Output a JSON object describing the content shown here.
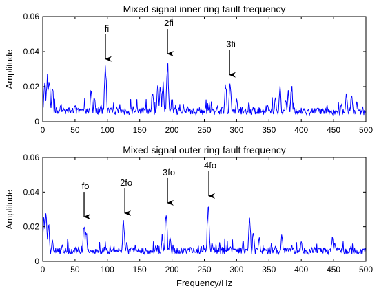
{
  "chart_data": [
    {
      "type": "line",
      "title": "Mixed signal inner ring fault frequency",
      "xlabel": "",
      "ylabel": "Amplitude",
      "xlim": [
        0,
        500
      ],
      "ylim": [
        0,
        0.06
      ],
      "xticks": [
        0,
        50,
        100,
        150,
        200,
        250,
        300,
        350,
        400,
        450,
        500
      ],
      "yticks": [
        0,
        0.02,
        0.04,
        0.06
      ],
      "xtick_labels": [
        "0",
        "50",
        "100",
        "150",
        "200",
        "250",
        "300",
        "350",
        "400",
        "450",
        "500"
      ],
      "ytick_labels": [
        "0",
        "0.02",
        "0.04",
        "0.06"
      ],
      "grid": false,
      "color": "#0000ff",
      "peaks": [
        {
          "x": 3,
          "y": 0.026
        },
        {
          "x": 7,
          "y": 0.028
        },
        {
          "x": 10,
          "y": 0.027
        },
        {
          "x": 15,
          "y": 0.022
        },
        {
          "x": 28,
          "y": 0.012
        },
        {
          "x": 50,
          "y": 0.011
        },
        {
          "x": 75,
          "y": 0.02
        },
        {
          "x": 80,
          "y": 0.016
        },
        {
          "x": 90,
          "y": 0.012
        },
        {
          "x": 97,
          "y": 0.035
        },
        {
          "x": 115,
          "y": 0.009
        },
        {
          "x": 140,
          "y": 0.009
        },
        {
          "x": 170,
          "y": 0.02
        },
        {
          "x": 178,
          "y": 0.025
        },
        {
          "x": 182,
          "y": 0.022
        },
        {
          "x": 186,
          "y": 0.024
        },
        {
          "x": 193,
          "y": 0.038
        },
        {
          "x": 200,
          "y": 0.015
        },
        {
          "x": 220,
          "y": 0.008
        },
        {
          "x": 245,
          "y": 0.007
        },
        {
          "x": 270,
          "y": 0.01
        },
        {
          "x": 283,
          "y": 0.024
        },
        {
          "x": 290,
          "y": 0.026
        },
        {
          "x": 300,
          "y": 0.014
        },
        {
          "x": 325,
          "y": 0.009
        },
        {
          "x": 348,
          "y": 0.012
        },
        {
          "x": 360,
          "y": 0.015
        },
        {
          "x": 367,
          "y": 0.022
        },
        {
          "x": 376,
          "y": 0.014
        },
        {
          "x": 380,
          "y": 0.018
        },
        {
          "x": 385,
          "y": 0.022
        },
        {
          "x": 410,
          "y": 0.008
        },
        {
          "x": 440,
          "y": 0.01
        },
        {
          "x": 462,
          "y": 0.012
        },
        {
          "x": 470,
          "y": 0.017
        },
        {
          "x": 478,
          "y": 0.018
        },
        {
          "x": 486,
          "y": 0.012
        },
        {
          "x": 495,
          "y": 0.009
        }
      ],
      "annotations": [
        {
          "text": "fi",
          "x": 97,
          "y": 0.035
        },
        {
          "text": "2fi",
          "x": 193,
          "y": 0.038
        },
        {
          "text": "3fi",
          "x": 289,
          "y": 0.026
        }
      ]
    },
    {
      "type": "line",
      "title": "Mixed signal outer ring fault frequency",
      "xlabel": "Frequency/Hz",
      "ylabel": "Amplitude",
      "xlim": [
        0,
        500
      ],
      "ylim": [
        0,
        0.06
      ],
      "xticks": [
        0,
        50,
        100,
        150,
        200,
        250,
        300,
        350,
        400,
        450,
        500
      ],
      "yticks": [
        0,
        0.02,
        0.04,
        0.06
      ],
      "xtick_labels": [
        "0",
        "50",
        "100",
        "150",
        "200",
        "250",
        "300",
        "350",
        "400",
        "450",
        "500"
      ],
      "ytick_labels": [
        "0",
        "0.02",
        "0.04",
        "0.06"
      ],
      "grid": false,
      "color": "#0000ff",
      "peaks": [
        {
          "x": 2,
          "y": 0.032
        },
        {
          "x": 5,
          "y": 0.028
        },
        {
          "x": 9,
          "y": 0.024
        },
        {
          "x": 15,
          "y": 0.015
        },
        {
          "x": 30,
          "y": 0.01
        },
        {
          "x": 50,
          "y": 0.008
        },
        {
          "x": 64,
          "y": 0.025
        },
        {
          "x": 67,
          "y": 0.02
        },
        {
          "x": 95,
          "y": 0.009
        },
        {
          "x": 110,
          "y": 0.01
        },
        {
          "x": 125,
          "y": 0.027
        },
        {
          "x": 130,
          "y": 0.013
        },
        {
          "x": 150,
          "y": 0.008
        },
        {
          "x": 175,
          "y": 0.01
        },
        {
          "x": 185,
          "y": 0.016
        },
        {
          "x": 191,
          "y": 0.033
        },
        {
          "x": 197,
          "y": 0.017
        },
        {
          "x": 225,
          "y": 0.009
        },
        {
          "x": 245,
          "y": 0.01
        },
        {
          "x": 256,
          "y": 0.037
        },
        {
          "x": 262,
          "y": 0.012
        },
        {
          "x": 290,
          "y": 0.009
        },
        {
          "x": 310,
          "y": 0.012
        },
        {
          "x": 320,
          "y": 0.028
        },
        {
          "x": 326,
          "y": 0.02
        },
        {
          "x": 335,
          "y": 0.014
        },
        {
          "x": 350,
          "y": 0.009
        },
        {
          "x": 370,
          "y": 0.016
        },
        {
          "x": 385,
          "y": 0.01
        },
        {
          "x": 400,
          "y": 0.012
        },
        {
          "x": 420,
          "y": 0.008
        },
        {
          "x": 448,
          "y": 0.015
        },
        {
          "x": 452,
          "y": 0.013
        },
        {
          "x": 475,
          "y": 0.006
        },
        {
          "x": 495,
          "y": 0.006
        }
      ],
      "annotations": [
        {
          "text": "fo",
          "x": 64,
          "y": 0.025
        },
        {
          "text": "2fo",
          "x": 127,
          "y": 0.027
        },
        {
          "text": "3fo",
          "x": 193,
          "y": 0.033
        },
        {
          "text": "4fo",
          "x": 257,
          "y": 0.037
        }
      ]
    }
  ]
}
